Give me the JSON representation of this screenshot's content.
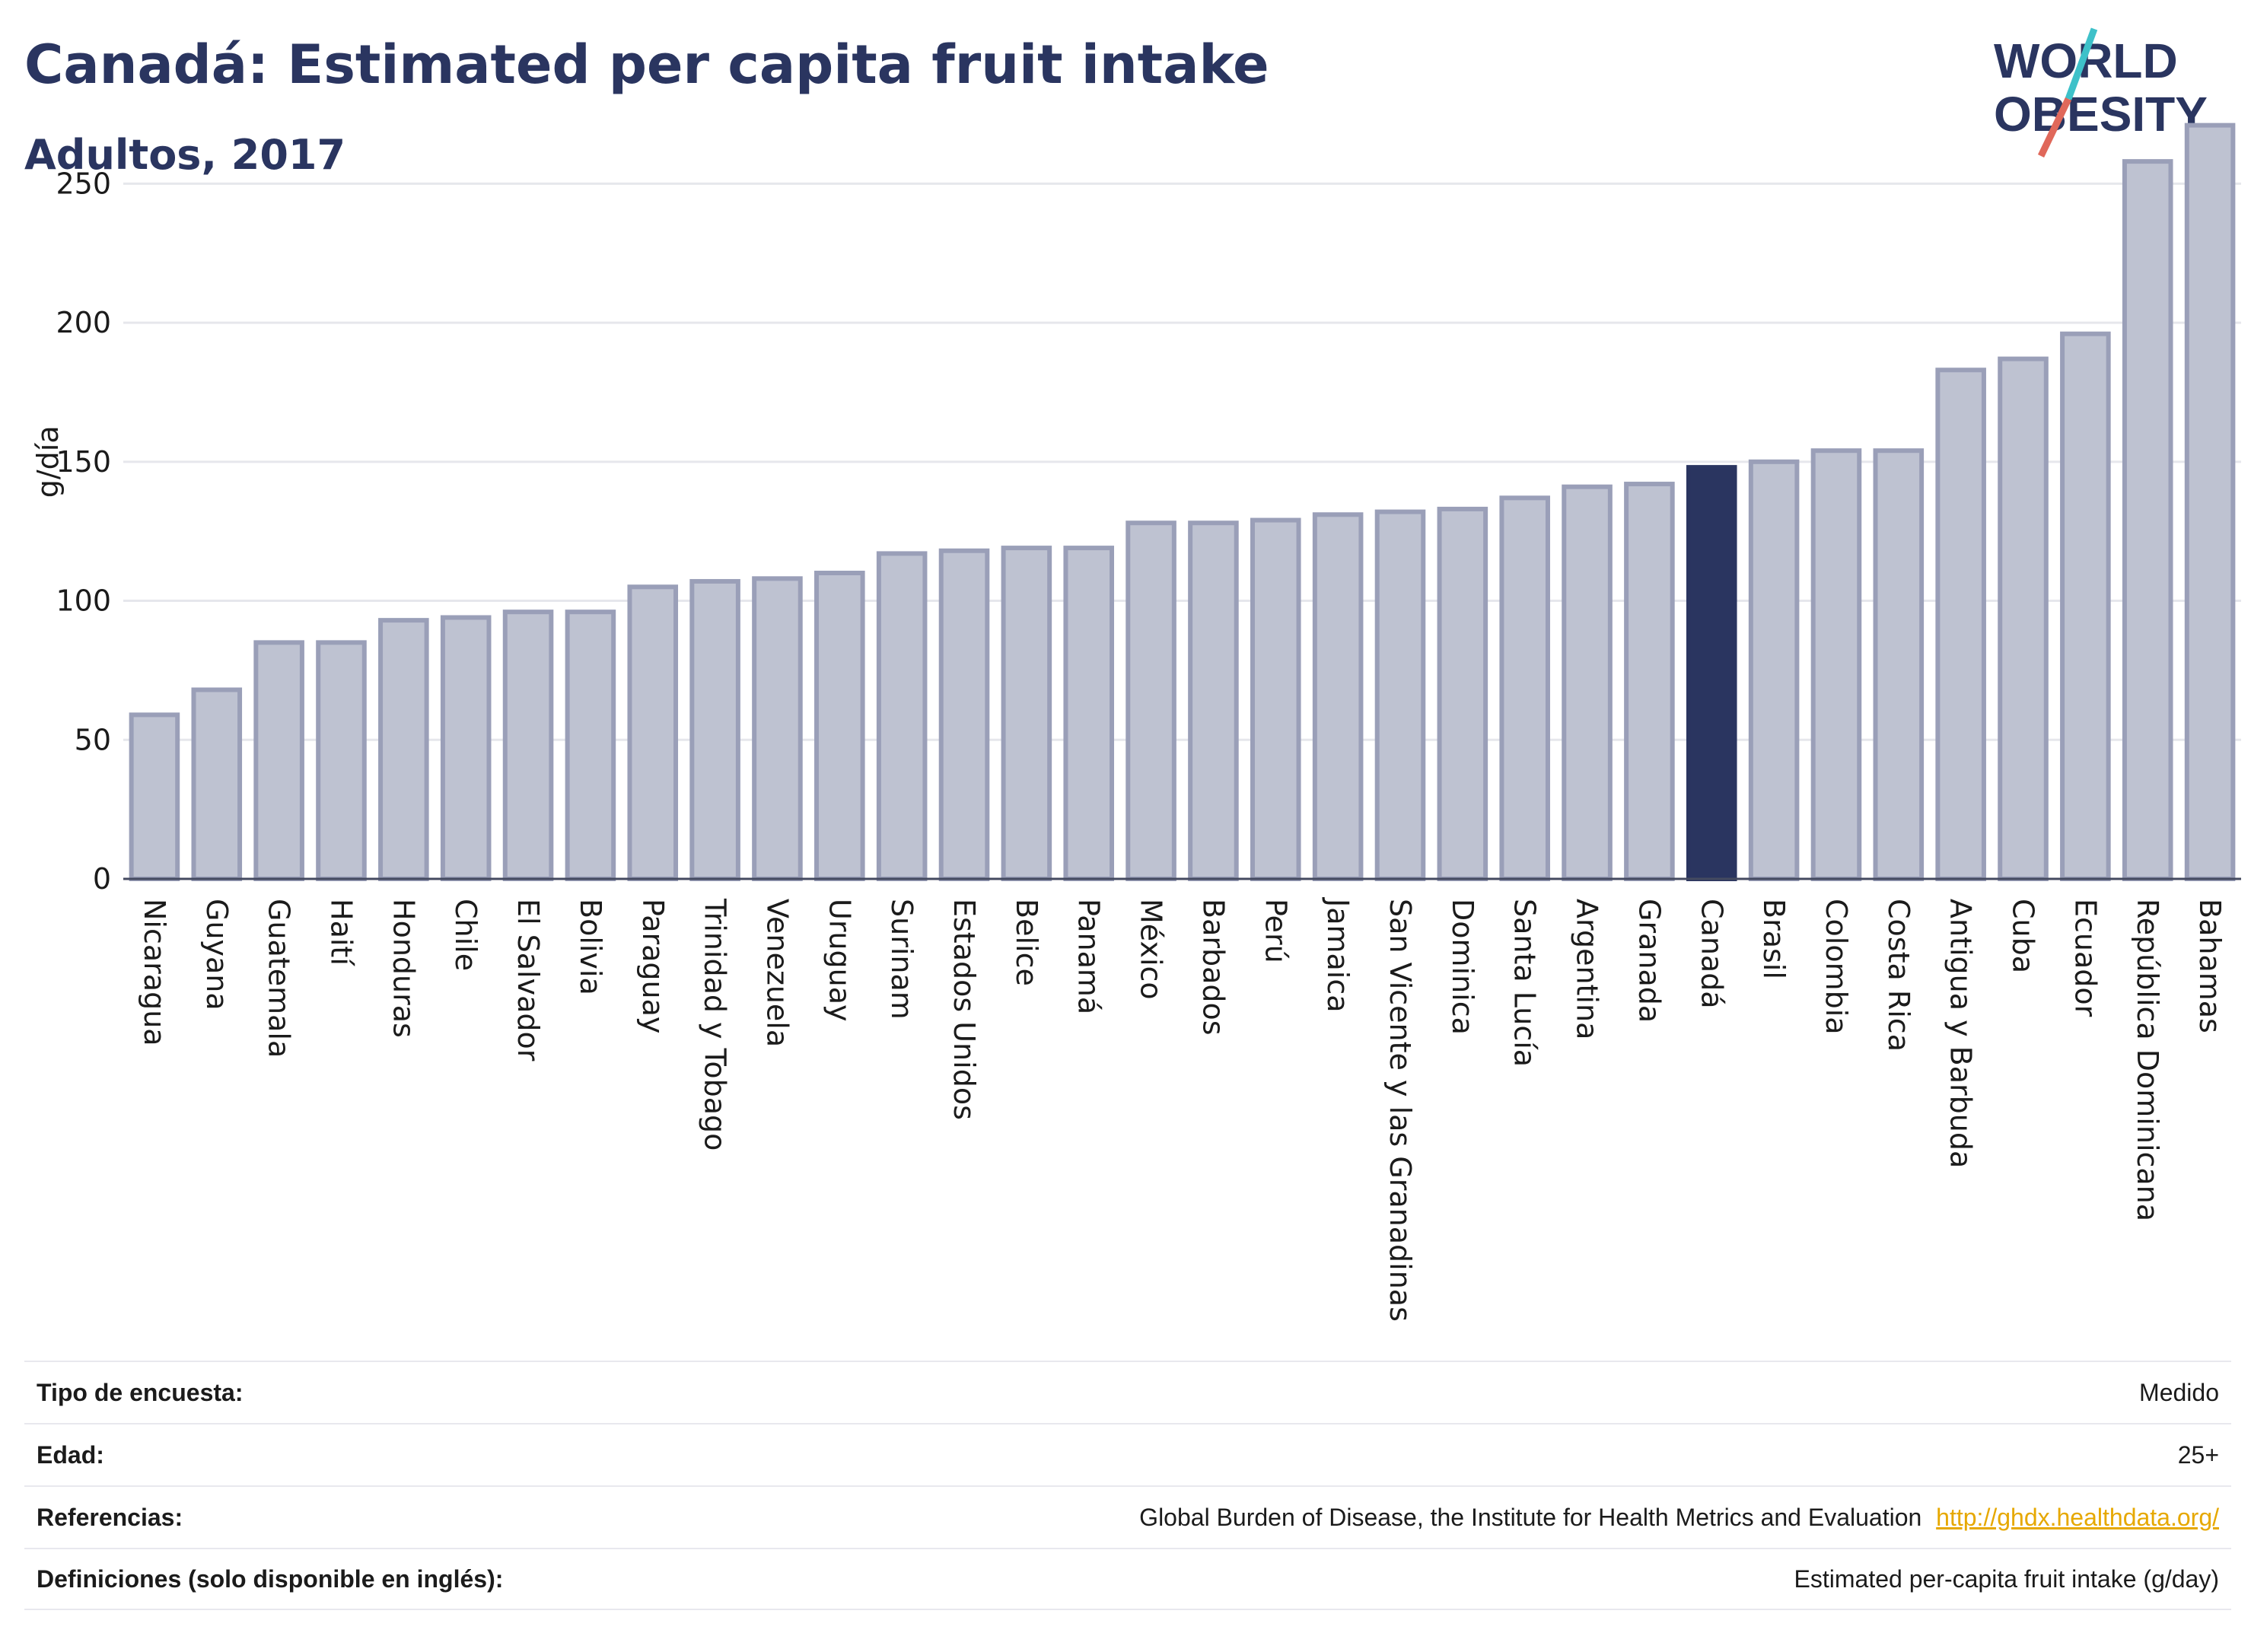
{
  "header": {
    "title": "Canadá: Estimated per capita fruit intake",
    "subtitle": "Adultos, 2017"
  },
  "logo": {
    "line1": "WORLD",
    "line2": "OBESITY",
    "colors": {
      "text": "#2a3560",
      "accent_red": "#e0685a",
      "accent_teal": "#3ec1c9"
    }
  },
  "colors": {
    "bar_fill": "#bec2d1",
    "bar_stroke": "#9a9fb8",
    "highlight": "#2a3560",
    "grid": "#e6e7ec",
    "axis_text": "#1b1b1b"
  },
  "chart_data": {
    "type": "bar",
    "title": "Canadá: Estimated per capita fruit intake",
    "subtitle": "Adultos, 2017",
    "ylabel": "g/día",
    "xlabel": "",
    "ylim": [
      0,
      275
    ],
    "yticks": [
      0,
      50,
      100,
      150,
      200,
      250
    ],
    "grid": true,
    "highlight": "Canadá",
    "categories": [
      "Nicaragua",
      "Guyana",
      "Guatemala",
      "Haití",
      "Honduras",
      "Chile",
      "El Salvador",
      "Bolivia",
      "Paraguay",
      "Trinidad y Tobago",
      "Venezuela",
      "Uruguay",
      "Surinam",
      "Estados Unidos",
      "Belice",
      "Panamá",
      "México",
      "Barbados",
      "Perú",
      "Jamaica",
      "San Vicente y las Granadinas",
      "Dominica",
      "Santa Lucía",
      "Argentina",
      "Granada",
      "Canadá",
      "Brasil",
      "Colombia",
      "Costa Rica",
      "Antigua y Barbuda",
      "Cuba",
      "Ecuador",
      "República Dominicana",
      "Bahamas"
    ],
    "values": [
      59,
      68,
      85,
      85,
      93,
      94,
      96,
      96,
      105,
      107,
      108,
      110,
      117,
      118,
      119,
      119,
      128,
      128,
      129,
      131,
      132,
      133,
      137,
      141,
      142,
      148,
      150,
      154,
      154,
      183,
      187,
      196,
      258,
      271
    ]
  },
  "info": [
    {
      "label": "Tipo de encuesta:",
      "value": "Medido",
      "link": ""
    },
    {
      "label": "Edad:",
      "value": "25+",
      "link": ""
    },
    {
      "label": "Referencias:",
      "value": "Global Burden of Disease, the Institute for Health Metrics and Evaluation",
      "link": "http://ghdx.healthdata.org/"
    },
    {
      "label": "Definiciones (solo disponible en inglés):",
      "value": "Estimated per-capita fruit intake (g/day)",
      "link": ""
    }
  ]
}
